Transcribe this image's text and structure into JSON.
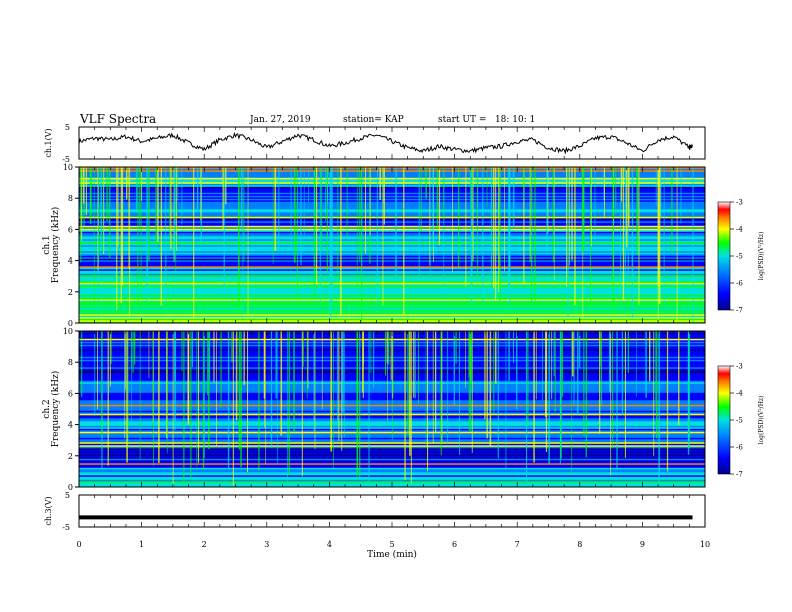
{
  "header": {
    "title": "VLF Spectra",
    "date": "Jan. 27, 2019",
    "station": "station= KAP",
    "start": "start UT =   18: 10: 1"
  },
  "colors": {
    "waveform": "#000000",
    "colormap": [
      "#00008c",
      "#0000ff",
      "#0080ff",
      "#00e0e0",
      "#00ff00",
      "#ffff00",
      "#ff8000",
      "#ff0000",
      "#ffffff"
    ]
  },
  "chart_data": [
    {
      "type": "line",
      "ylabel": "ch.1(V)",
      "ylim": [
        -5,
        5
      ],
      "yticks": [
        "5",
        "-5"
      ],
      "xlim": [
        0,
        10
      ],
      "description_series": "ch1 waveform",
      "x": [
        0,
        0.25,
        0.5,
        0.75,
        1,
        1.25,
        1.5,
        1.75,
        2,
        2.25,
        2.5,
        2.75,
        3,
        3.25,
        3.5,
        3.75,
        4,
        4.25,
        4.5,
        4.75,
        5,
        5.25,
        5.5,
        5.75,
        6,
        6.25,
        6.5,
        6.75,
        7,
        7.25,
        7.5,
        7.75,
        8,
        8.25,
        8.5,
        8.75,
        9,
        9.25,
        9.5,
        9.75,
        9.8
      ],
      "y": [
        0.5,
        1.5,
        1,
        2,
        0.5,
        1.5,
        2.5,
        0,
        -2,
        1,
        2.5,
        1,
        -1.5,
        0.5,
        2.5,
        1,
        -1,
        0,
        1.5,
        2.5,
        0.5,
        -1.5,
        -2.5,
        -1,
        -2,
        -2.5,
        -1.5,
        -1,
        0.5,
        1,
        -1.5,
        -2.5,
        -1,
        1.5,
        2,
        0,
        -2.5,
        1,
        2,
        -1.5,
        -1
      ]
    },
    {
      "type": "heatmap",
      "ylabel": "ch.1",
      "ylabel2": "Frequency (kHz)",
      "ylim": [
        0,
        10
      ],
      "yticks": [
        "0",
        "2",
        "4",
        "6",
        "8",
        "10"
      ],
      "xlim": [
        0,
        10
      ],
      "colorbar": {
        "label": "log(PSD)(V²/Hz)",
        "ticks": [
          "-3",
          "-4",
          "-5",
          "-6",
          "-7"
        ],
        "range": [
          -7,
          -3
        ]
      },
      "level_by_khz": [
        -4.6,
        -5.0,
        -4.9,
        -5.1,
        -4.7,
        -5.6,
        -6.1,
        -5.6,
        -5.2,
        -5.6,
        -6.2,
        -5.6,
        -5.9,
        -6.3,
        -5.4,
        -5.5,
        -5.3
      ]
    },
    {
      "type": "heatmap",
      "ylabel": "ch.2",
      "ylabel2": "Frequency (kHz)",
      "ylim": [
        0,
        10
      ],
      "yticks": [
        "0",
        "2",
        "4",
        "6",
        "8",
        "10"
      ],
      "xlim": [
        0,
        10
      ],
      "colorbar": {
        "label": "log(PSD)(V²/Hz)",
        "ticks": [
          "-3",
          "-4",
          "-5",
          "-6",
          "-7"
        ],
        "range": [
          -7,
          -3
        ]
      },
      "level_by_khz": [
        -5.2,
        -5.8,
        -6.1,
        -6.4,
        -5.7,
        -6.0,
        -5.6,
        -5.9,
        -5.8,
        -6.2,
        -5.7,
        -6.4,
        -6.2,
        -6.0,
        -6.3,
        -6.5,
        -6.0
      ]
    },
    {
      "type": "line",
      "ylabel": "ch.3(V)",
      "ylim": [
        -5,
        5
      ],
      "yticks": [
        "5",
        "-5"
      ],
      "xlim": [
        0,
        10
      ],
      "xlabel": "Time (min)",
      "xticks": [
        "0",
        "1",
        "2",
        "3",
        "4",
        "5",
        "6",
        "7",
        "8",
        "9",
        "10"
      ],
      "x": [
        0,
        9.8
      ],
      "y": [
        -2,
        -2
      ]
    }
  ]
}
